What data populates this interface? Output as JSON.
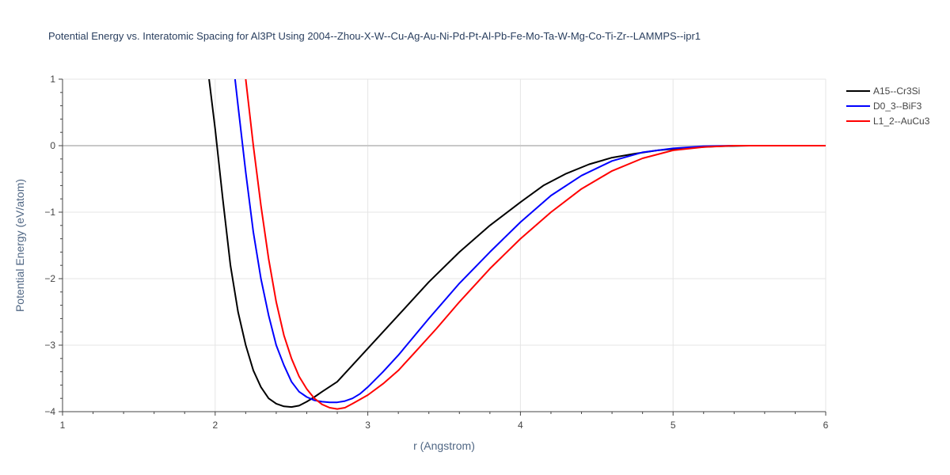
{
  "chart_data": {
    "type": "line",
    "title": "Potential Energy vs. Interatomic Spacing for Al3Pt Using 2004--Zhou-X-W--Cu-Ag-Au-Ni-Pd-Pt-Al-Pb-Fe-Mo-Ta-W-Mg-Co-Ti-Zr--LAMMPS--ipr1",
    "xlabel": "r (Angstrom)",
    "ylabel": "Potential Energy (eV/atom)",
    "xlim": [
      1,
      6
    ],
    "ylim": [
      -4,
      1
    ],
    "xticks": [
      1,
      2,
      3,
      4,
      5,
      6
    ],
    "yticks": [
      -4,
      -3,
      -2,
      -1,
      0,
      1
    ],
    "xtick_labels": [
      "1",
      "2",
      "3",
      "4",
      "5",
      "6"
    ],
    "ytick_labels": [
      "−4",
      "−3",
      "−2",
      "−1",
      "0",
      "1"
    ],
    "grid": true,
    "legend_position": "top-right",
    "series": [
      {
        "name": "A15--Cr3Si",
        "color": "#000000",
        "x": [
          1.96,
          2.0,
          2.05,
          2.1,
          2.15,
          2.2,
          2.25,
          2.3,
          2.35,
          2.4,
          2.45,
          2.5,
          2.55,
          2.6,
          2.65,
          2.7,
          2.8,
          2.9,
          3.0,
          3.2,
          3.4,
          3.6,
          3.8,
          4.0,
          4.15,
          4.3,
          4.45,
          4.6,
          4.75,
          4.9,
          5.1,
          5.3,
          5.5,
          5.7,
          6.0
        ],
        "y": [
          1.0,
          0.25,
          -0.8,
          -1.8,
          -2.5,
          -3.0,
          -3.38,
          -3.63,
          -3.8,
          -3.88,
          -3.92,
          -3.93,
          -3.91,
          -3.85,
          -3.78,
          -3.7,
          -3.55,
          -3.3,
          -3.05,
          -2.55,
          -2.05,
          -1.6,
          -1.2,
          -0.85,
          -0.6,
          -0.42,
          -0.28,
          -0.18,
          -0.12,
          -0.07,
          -0.03,
          -0.01,
          0.0,
          0.0,
          0.0
        ]
      },
      {
        "name": "D0_3--BiF3",
        "color": "#0000ff",
        "x": [
          2.13,
          2.15,
          2.2,
          2.25,
          2.3,
          2.35,
          2.4,
          2.45,
          2.5,
          2.55,
          2.6,
          2.65,
          2.7,
          2.75,
          2.8,
          2.85,
          2.9,
          2.95,
          3.0,
          3.1,
          3.2,
          3.4,
          3.6,
          3.8,
          4.0,
          4.2,
          4.4,
          4.6,
          4.8,
          5.0,
          5.2,
          5.4,
          5.6,
          6.0
        ],
        "y": [
          1.0,
          0.6,
          -0.4,
          -1.3,
          -2.0,
          -2.55,
          -3.0,
          -3.3,
          -3.55,
          -3.7,
          -3.78,
          -3.83,
          -3.85,
          -3.86,
          -3.86,
          -3.84,
          -3.8,
          -3.73,
          -3.63,
          -3.4,
          -3.15,
          -2.6,
          -2.07,
          -1.6,
          -1.15,
          -0.75,
          -0.45,
          -0.23,
          -0.1,
          -0.04,
          -0.01,
          0.0,
          0.0,
          0.0
        ]
      },
      {
        "name": "L1_2--AuCu3",
        "color": "#ff0000",
        "x": [
          2.2,
          2.25,
          2.3,
          2.35,
          2.4,
          2.45,
          2.5,
          2.55,
          2.6,
          2.65,
          2.7,
          2.75,
          2.8,
          2.85,
          2.9,
          3.0,
          3.1,
          3.2,
          3.3,
          3.45,
          3.6,
          3.8,
          4.0,
          4.2,
          4.4,
          4.6,
          4.8,
          5.0,
          5.2,
          5.4,
          5.6,
          6.0
        ],
        "y": [
          1.0,
          0.0,
          -0.9,
          -1.7,
          -2.35,
          -2.85,
          -3.2,
          -3.47,
          -3.66,
          -3.8,
          -3.89,
          -3.94,
          -3.96,
          -3.94,
          -3.88,
          -3.75,
          -3.58,
          -3.38,
          -3.13,
          -2.75,
          -2.35,
          -1.85,
          -1.4,
          -1.0,
          -0.65,
          -0.38,
          -0.19,
          -0.07,
          -0.02,
          0.0,
          0.0,
          0.0
        ]
      }
    ]
  }
}
